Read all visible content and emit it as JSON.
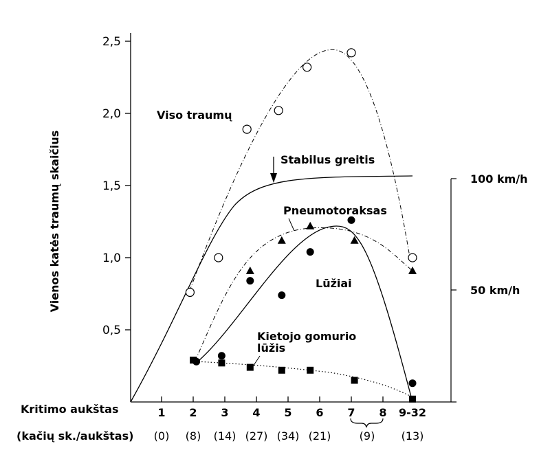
{
  "chart_data": {
    "type": "scatter",
    "title": "",
    "ylabel": "Vienos katės traumų skaičius",
    "ylim": [
      0,
      2.5
    ],
    "yticks": [
      {
        "v": 0.5,
        "label": "0,5"
      },
      {
        "v": 1.0,
        "label": "1,0"
      },
      {
        "v": 1.5,
        "label": "1,5"
      },
      {
        "v": 2.0,
        "label": "2,0"
      },
      {
        "v": 2.5,
        "label": "2,5"
      }
    ],
    "x_row_title": "Kritimo aukštas",
    "count_row_title": "(kačių sk./aukštas)",
    "categories": [
      "1",
      "2",
      "3",
      "4",
      "5",
      "6",
      "7",
      "8",
      "9-32"
    ],
    "counts": [
      {
        "x": 1,
        "label": "(0)"
      },
      {
        "x": 2,
        "label": "(8)"
      },
      {
        "x": 3,
        "label": "(14)"
      },
      {
        "x": 4,
        "label": "(27)"
      },
      {
        "x": 5,
        "label": "(34)"
      },
      {
        "x": 6,
        "label": "(21)"
      },
      {
        "x": 7.5,
        "label": "(9)"
      },
      {
        "x": 9,
        "label": "(13)"
      }
    ],
    "series": [
      {
        "name": "Viso traumų",
        "marker": "open-circle",
        "x": [
          1.9,
          2.8,
          3.7,
          4.7,
          5.6,
          7.0,
          9.0
        ],
        "y": [
          0.76,
          1.0,
          1.89,
          2.02,
          2.32,
          2.42,
          1.0
        ]
      },
      {
        "name": "Pneumotoraksas",
        "marker": "triangle",
        "x": [
          3.8,
          4.8,
          5.7,
          7.1,
          9.0
        ],
        "y": [
          0.91,
          1.12,
          1.22,
          1.12,
          0.91
        ]
      },
      {
        "name": "Lūžiai",
        "marker": "filled-circle",
        "x": [
          2.1,
          2.9,
          3.8,
          4.8,
          5.7,
          7.0,
          9.0
        ],
        "y": [
          0.28,
          0.32,
          0.84,
          0.74,
          1.04,
          1.26,
          0.13
        ]
      },
      {
        "name": "Kietojo gomurio lūžis",
        "marker": "square",
        "x": [
          2.0,
          2.9,
          3.8,
          4.8,
          5.7,
          7.1,
          9.0
        ],
        "y": [
          0.29,
          0.27,
          0.24,
          0.22,
          0.22,
          0.15,
          0.02
        ]
      }
    ],
    "curve_label": "Stabilus greitis",
    "speed_labels": [
      "100 km/h",
      "50 km/h"
    ],
    "grid": false
  }
}
